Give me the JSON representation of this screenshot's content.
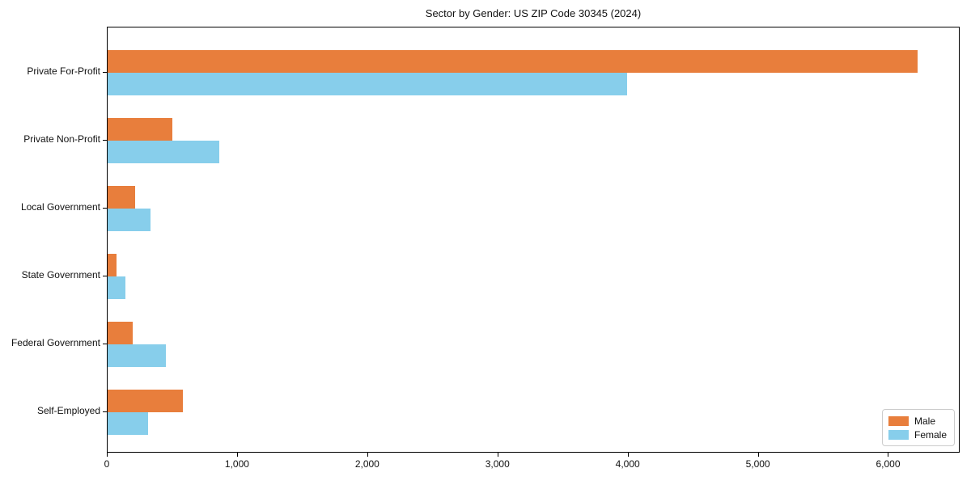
{
  "chart_data": {
    "type": "bar",
    "orientation": "horizontal",
    "title": "Sector by Gender: US ZIP Code 30345 (2024)",
    "categories": [
      "Private For-Profit",
      "Private Non-Profit",
      "Local Government",
      "State Government",
      "Federal Government",
      "Self-Employed"
    ],
    "series": [
      {
        "name": "Male",
        "color": "#E87E3C",
        "values": [
          6230,
          500,
          210,
          70,
          190,
          580
        ]
      },
      {
        "name": "Female",
        "color": "#87CEEB",
        "values": [
          4000,
          860,
          330,
          140,
          450,
          310
        ]
      }
    ],
    "xlabel": "",
    "ylabel": "",
    "xlim": [
      0,
      6550
    ],
    "xticks": [
      0,
      1000,
      2000,
      3000,
      4000,
      5000,
      6000
    ],
    "xtick_labels": [
      "0",
      "1,000",
      "2,000",
      "3,000",
      "4,000",
      "5,000",
      "6,000"
    ],
    "grid": false,
    "plot_background": "#ffffff",
    "spine_color": "#000000",
    "legend": {
      "position": "lower right",
      "entries": [
        "Male",
        "Female"
      ]
    }
  }
}
